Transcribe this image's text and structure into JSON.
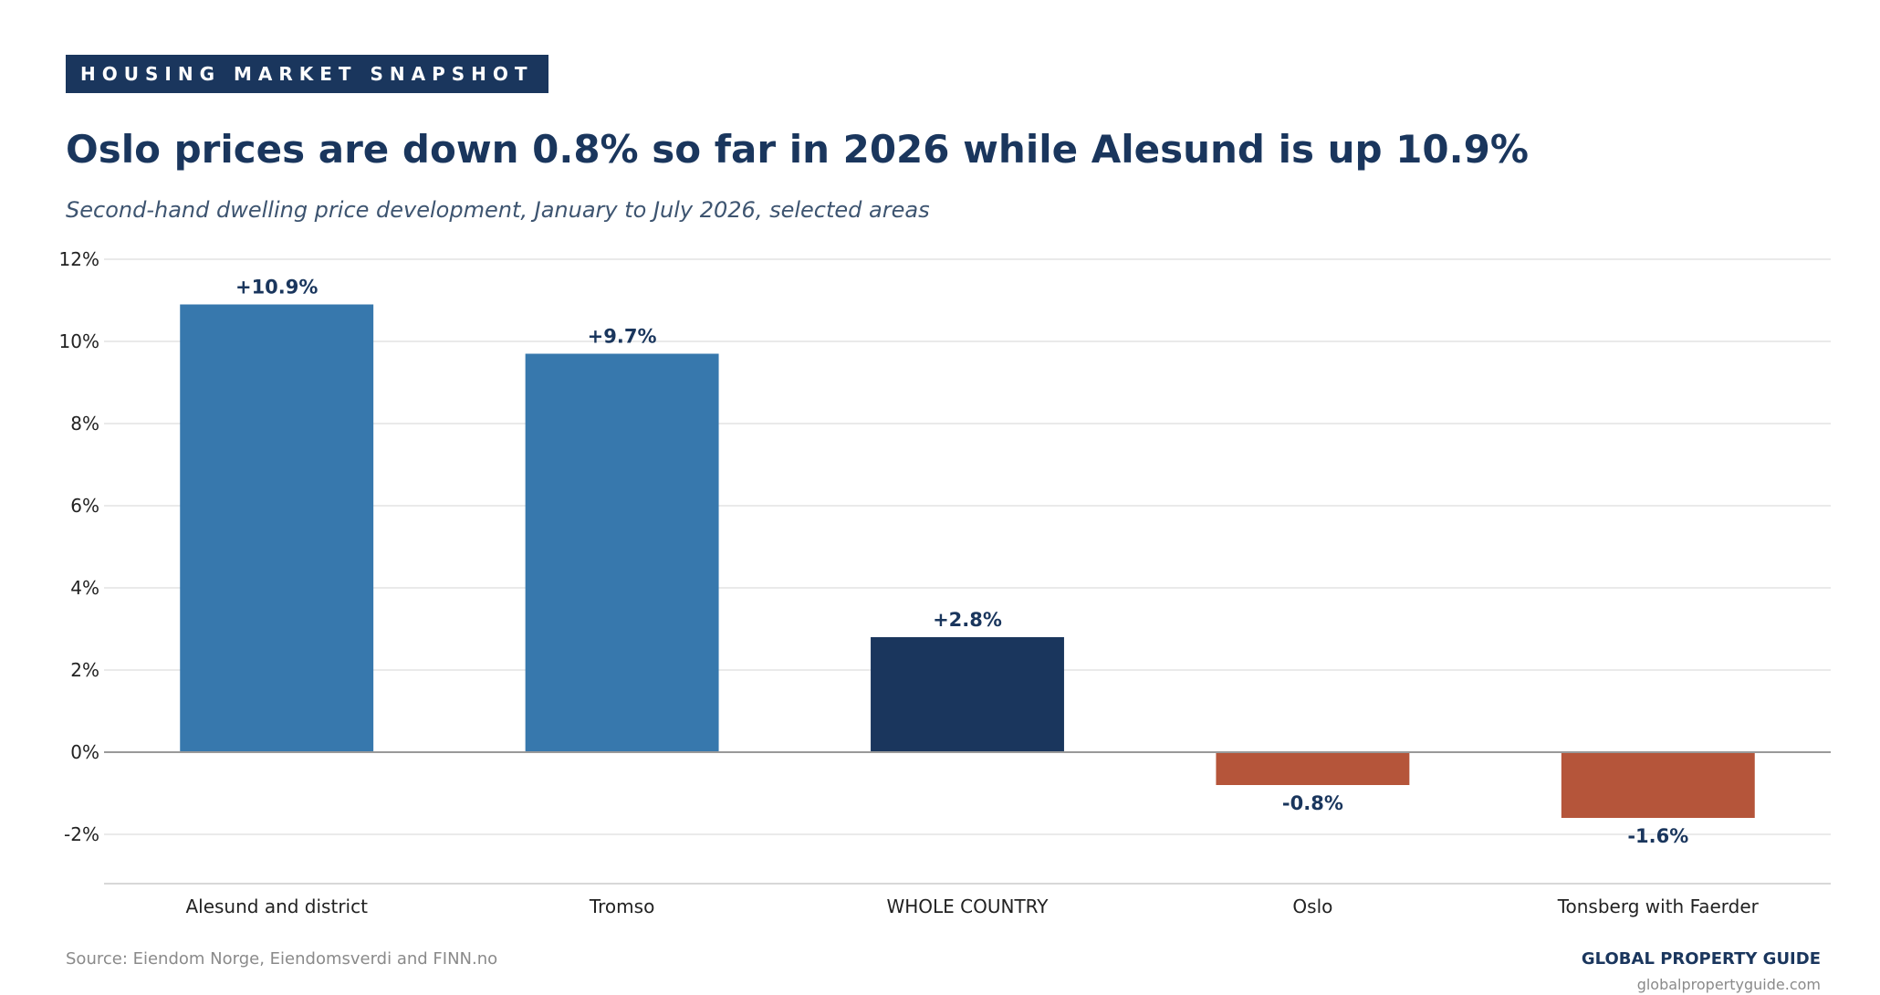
{
  "kicker": "HOUSING MARKET SNAPSHOT",
  "title": "Oslo prices are down 0.8% so far in 2026 while Alesund is up 10.9%",
  "subtitle": "Second-hand dwelling price development, January to July 2026, selected areas",
  "footer": {
    "source": "Source: Eiendom Norge, Eiendomsverdi and FINN.no",
    "brand": "GLOBAL PROPERTY GUIDE",
    "url": "globalpropertyguide.com"
  },
  "colors": {
    "positive": "#3778ad",
    "national": "#1a365d",
    "negative": "#b5553a",
    "label": "#1a365d",
    "grid": "#e3e3e3",
    "zero_line": "#999999"
  },
  "chart_data": {
    "type": "bar",
    "categories": [
      "Alesund and district",
      "Tromso",
      "WHOLE COUNTRY",
      "Oslo",
      "Tonsberg with Faerder"
    ],
    "values": [
      10.9,
      9.7,
      2.8,
      -0.8,
      -1.6
    ],
    "data_labels": [
      "+10.9%",
      "+9.7%",
      "+2.8%",
      "-0.8%",
      "-1.6%"
    ],
    "bar_colors": [
      "positive",
      "positive",
      "national",
      "negative",
      "negative"
    ],
    "title": "Oslo prices are down 0.8% so far in 2026 while Alesund is up 10.9%",
    "subtitle": "Second-hand dwelling price development, January to July 2026, selected areas",
    "xlabel": "",
    "ylabel": "",
    "ylim": [
      -3.2,
      12
    ],
    "yticks": [
      -2,
      0,
      2,
      4,
      6,
      8,
      10,
      12
    ],
    "ytick_labels": [
      "-2%",
      "0%",
      "2%",
      "4%",
      "6%",
      "8%",
      "10%",
      "12%"
    ],
    "grid": true,
    "legend": "none"
  }
}
